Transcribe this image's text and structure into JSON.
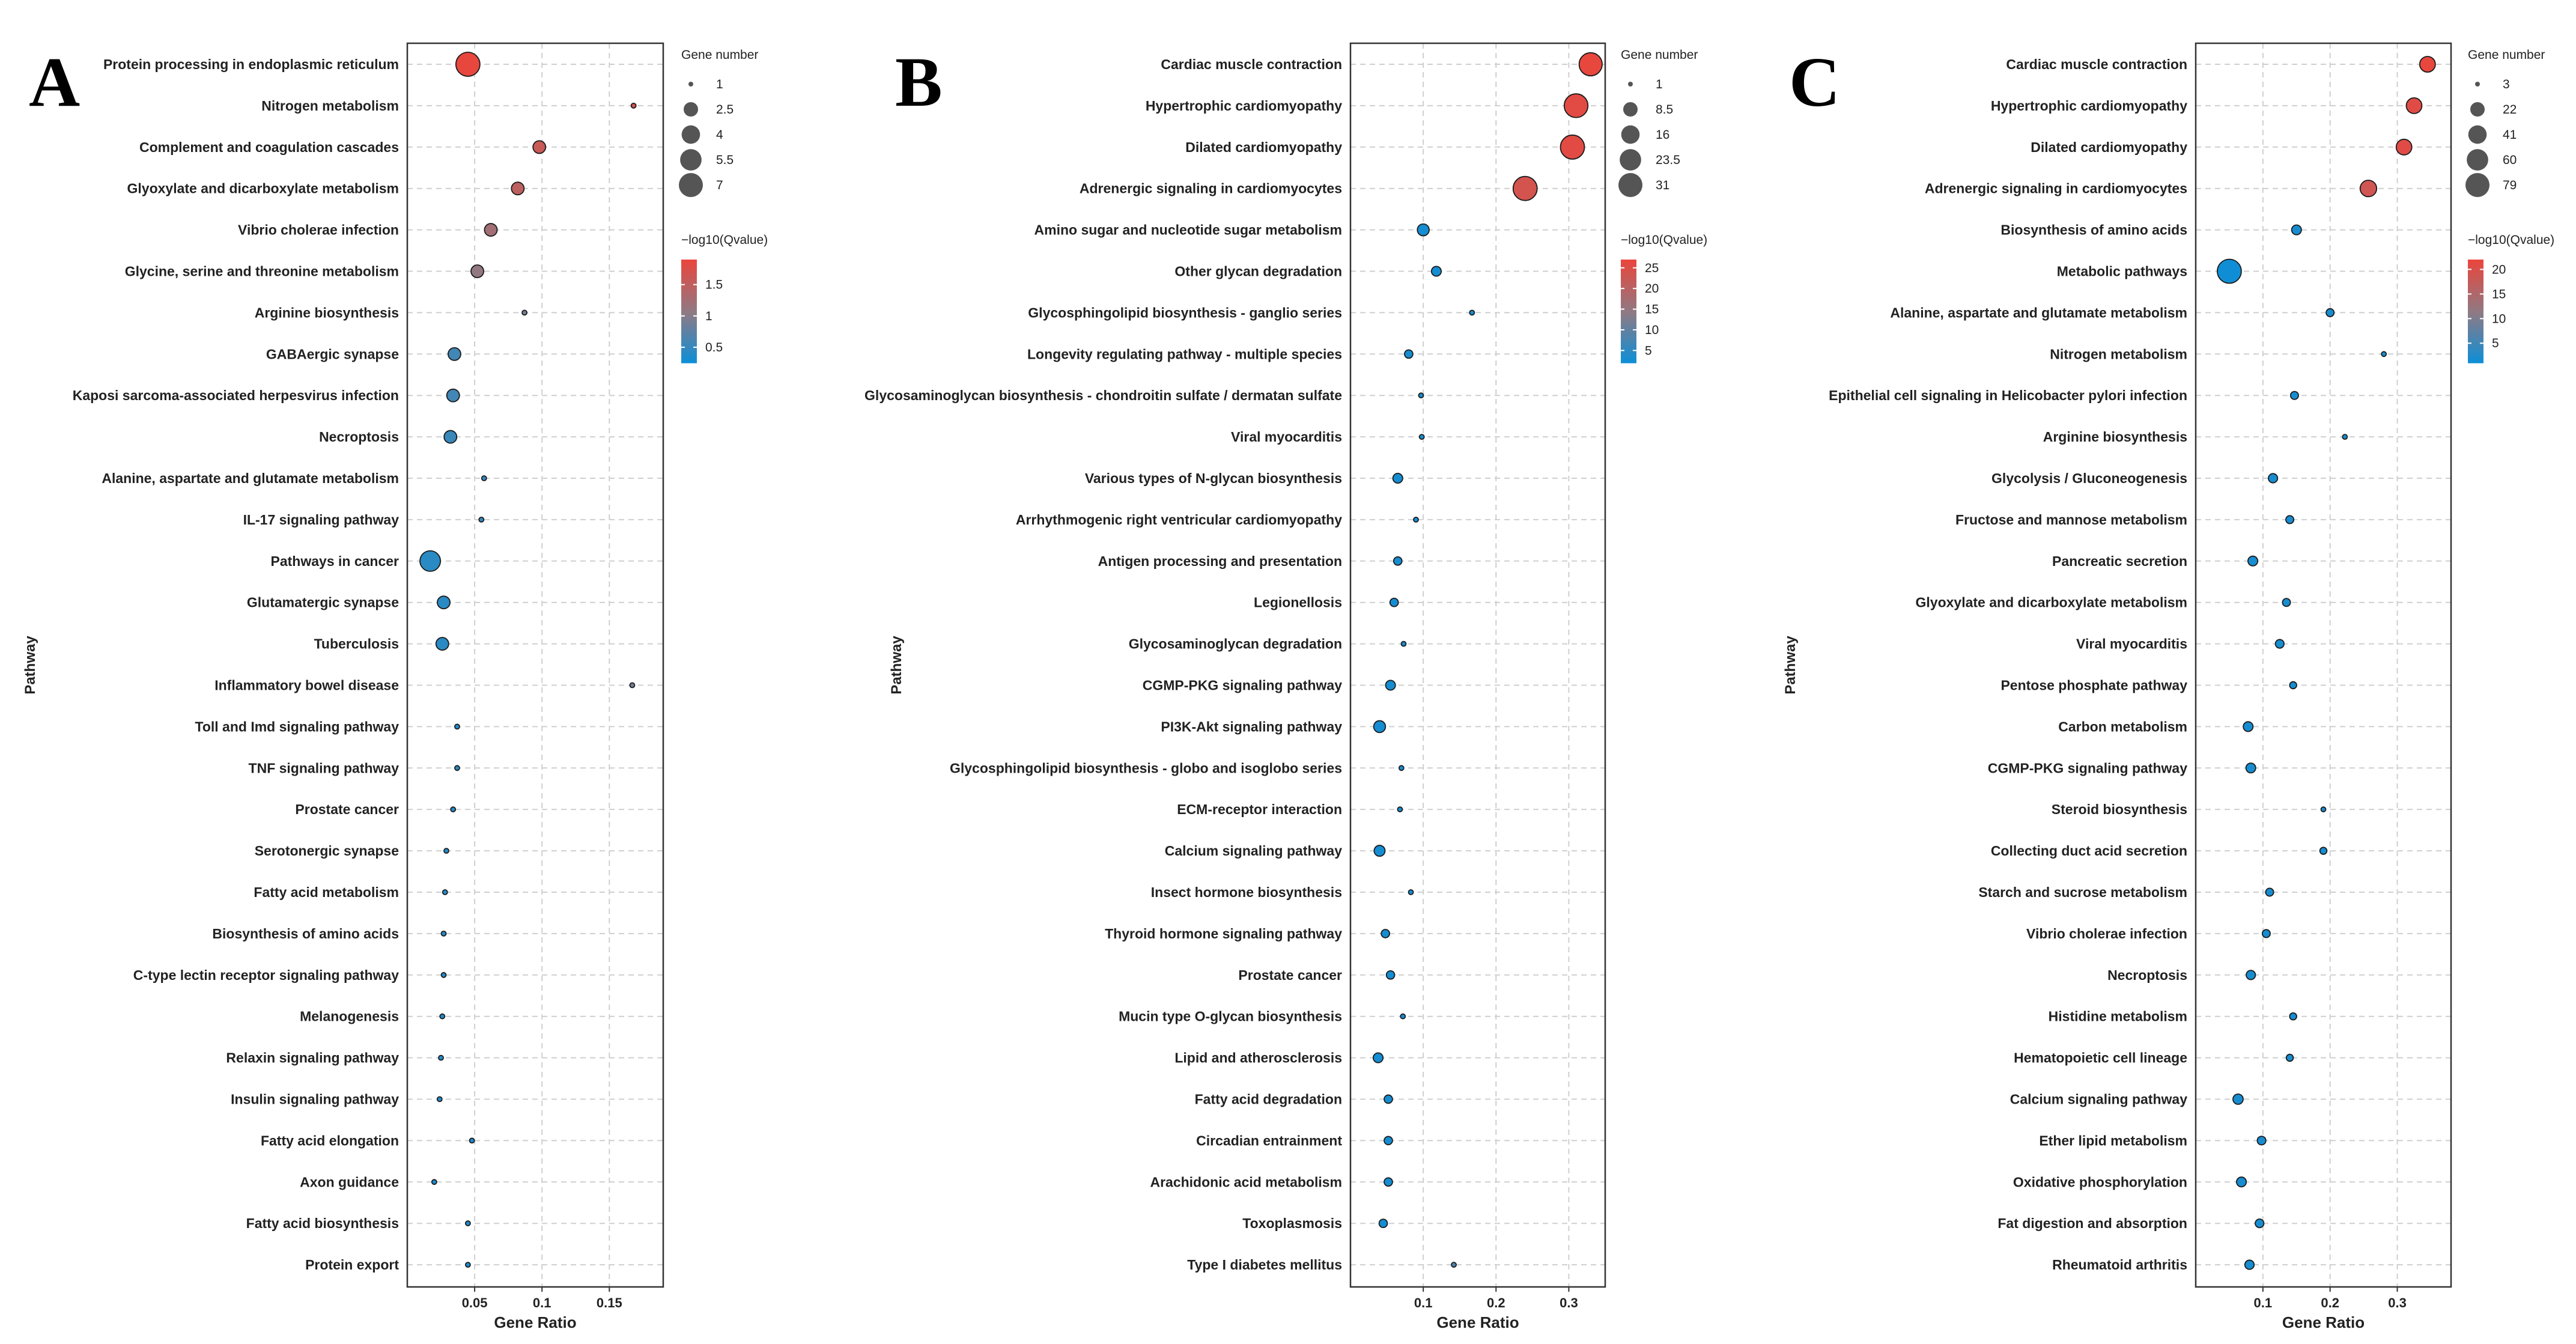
{
  "legend_titles": {
    "size": "Gene number",
    "color": "−log10(Qvalue)"
  },
  "colors": {
    "high": "#e8473e",
    "mid": "#8f7a84",
    "low": "#0a8fd9",
    "grid": "#cfcfcf",
    "frame": "#333333"
  },
  "chart_data": [
    {
      "label": "A",
      "type": "scatter",
      "xlabel": "Gene Ratio",
      "ylabel": "Pathway",
      "xlim": [
        0.0,
        0.19
      ],
      "xticks": [
        0.05,
        0.1,
        0.15
      ],
      "xtick_labels": [
        "0.05",
        "0.1",
        "0.15"
      ],
      "size_legend": [
        1,
        2.5,
        4,
        5.5,
        7
      ],
      "size_legend_labels": [
        "1",
        "2.5",
        "4",
        "5.5",
        "7"
      ],
      "size_range": [
        1,
        7
      ],
      "color_legend": [
        0.5,
        1,
        1.5
      ],
      "color_legend_labels": [
        "0.5",
        "1",
        "1.5"
      ],
      "color_range": [
        0.25,
        1.9
      ],
      "points": [
        {
          "pathway": "Protein processing in endoplasmic reticulum",
          "ratio": 0.045,
          "count": 7,
          "q": 1.9
        },
        {
          "pathway": "Nitrogen metabolism",
          "ratio": 0.168,
          "count": 1,
          "q": 1.75
        },
        {
          "pathway": "Complement and coagulation cascades",
          "ratio": 0.098,
          "count": 2,
          "q": 1.6
        },
        {
          "pathway": "Glyoxylate and dicarboxylate metabolism",
          "ratio": 0.082,
          "count": 2,
          "q": 1.5
        },
        {
          "pathway": "Vibrio cholerae infection",
          "ratio": 0.062,
          "count": 2,
          "q": 1.25
        },
        {
          "pathway": "Glycine, serine and threonine metabolism",
          "ratio": 0.052,
          "count": 2,
          "q": 1.1
        },
        {
          "pathway": "Arginine biosynthesis",
          "ratio": 0.087,
          "count": 1,
          "q": 0.9
        },
        {
          "pathway": "GABAergic synapse",
          "ratio": 0.035,
          "count": 2,
          "q": 0.6
        },
        {
          "pathway": "Kaposi sarcoma-associated herpesvirus infection",
          "ratio": 0.034,
          "count": 2,
          "q": 0.6
        },
        {
          "pathway": "Necroptosis",
          "ratio": 0.032,
          "count": 2,
          "q": 0.55
        },
        {
          "pathway": "Alanine, aspartate and glutamate metabolism",
          "ratio": 0.057,
          "count": 1,
          "q": 0.5
        },
        {
          "pathway": "IL-17 signaling pathway",
          "ratio": 0.055,
          "count": 1,
          "q": 0.5
        },
        {
          "pathway": "Pathways in cancer",
          "ratio": 0.017,
          "count": 5,
          "q": 0.45
        },
        {
          "pathway": "Glutamatergic synapse",
          "ratio": 0.027,
          "count": 2,
          "q": 0.45
        },
        {
          "pathway": "Tuberculosis",
          "ratio": 0.026,
          "count": 2,
          "q": 0.45
        },
        {
          "pathway": "Inflammatory bowel disease",
          "ratio": 0.167,
          "count": 1,
          "q": 0.9
        },
        {
          "pathway": "Toll and Imd signaling pathway",
          "ratio": 0.037,
          "count": 1,
          "q": 0.4
        },
        {
          "pathway": "TNF signaling pathway",
          "ratio": 0.037,
          "count": 1,
          "q": 0.4
        },
        {
          "pathway": "Prostate cancer",
          "ratio": 0.034,
          "count": 1,
          "q": 0.4
        },
        {
          "pathway": "Serotonergic synapse",
          "ratio": 0.029,
          "count": 1,
          "q": 0.4
        },
        {
          "pathway": "Fatty acid metabolism",
          "ratio": 0.028,
          "count": 1,
          "q": 0.4
        },
        {
          "pathway": "Biosynthesis of amino acids",
          "ratio": 0.027,
          "count": 1,
          "q": 0.4
        },
        {
          "pathway": "C-type lectin receptor signaling pathway",
          "ratio": 0.027,
          "count": 1,
          "q": 0.4
        },
        {
          "pathway": "Melanogenesis",
          "ratio": 0.026,
          "count": 1,
          "q": 0.4
        },
        {
          "pathway": "Relaxin signaling pathway",
          "ratio": 0.025,
          "count": 1,
          "q": 0.4
        },
        {
          "pathway": "Insulin signaling pathway",
          "ratio": 0.024,
          "count": 1,
          "q": 0.4
        },
        {
          "pathway": "Fatty acid elongation",
          "ratio": 0.048,
          "count": 1,
          "q": 0.35
        },
        {
          "pathway": "Axon guidance",
          "ratio": 0.02,
          "count": 1,
          "q": 0.35
        },
        {
          "pathway": "Fatty acid biosynthesis",
          "ratio": 0.045,
          "count": 1,
          "q": 0.35
        },
        {
          "pathway": "Protein export",
          "ratio": 0.045,
          "count": 1,
          "q": 0.35
        }
      ]
    },
    {
      "label": "B",
      "type": "scatter",
      "xlabel": "Gene Ratio",
      "ylabel": "Pathway",
      "xlim": [
        0.0,
        0.35
      ],
      "xticks": [
        0.1,
        0.2,
        0.3
      ],
      "xtick_labels": [
        "0.1",
        "0.2",
        "0.3"
      ],
      "size_legend": [
        1,
        8.5,
        16,
        23.5,
        31
      ],
      "size_legend_labels": [
        "1",
        "8.5",
        "16",
        "23.5",
        "31"
      ],
      "size_range": [
        1,
        31
      ],
      "color_legend": [
        5,
        10,
        15,
        20,
        25
      ],
      "color_legend_labels": [
        "5",
        "10",
        "15",
        "20",
        "25"
      ],
      "color_range": [
        2,
        27
      ],
      "points": [
        {
          "pathway": "Cardiac muscle contraction",
          "ratio": 0.33,
          "count": 28,
          "q": 27
        },
        {
          "pathway": "Hypertrophic cardiomyopathy",
          "ratio": 0.31,
          "count": 30,
          "q": 26
        },
        {
          "pathway": "Dilated cardiomyopathy",
          "ratio": 0.305,
          "count": 31,
          "q": 26
        },
        {
          "pathway": "Adrenergic signaling in cardiomyocytes",
          "ratio": 0.24,
          "count": 31,
          "q": 24
        },
        {
          "pathway": "Amino sugar and nucleotide sugar metabolism",
          "ratio": 0.1,
          "count": 5,
          "q": 3
        },
        {
          "pathway": "Other glycan degradation",
          "ratio": 0.118,
          "count": 3,
          "q": 3
        },
        {
          "pathway": "Glycosphingolipid biosynthesis - ganglio series",
          "ratio": 0.167,
          "count": 1,
          "q": 3
        },
        {
          "pathway": "Longevity regulating pathway - multiple species",
          "ratio": 0.08,
          "count": 2,
          "q": 3
        },
        {
          "pathway": "Glycosaminoglycan biosynthesis - chondroitin sulfate / dermatan sulfate",
          "ratio": 0.097,
          "count": 1,
          "q": 3
        },
        {
          "pathway": "Viral myocarditis",
          "ratio": 0.098,
          "count": 1,
          "q": 3
        },
        {
          "pathway": "Various types of N-glycan biosynthesis",
          "ratio": 0.065,
          "count": 3,
          "q": 3
        },
        {
          "pathway": "Arrhythmogenic right ventricular cardiomyopathy",
          "ratio": 0.09,
          "count": 1,
          "q": 3
        },
        {
          "pathway": "Antigen processing and presentation",
          "ratio": 0.065,
          "count": 2,
          "q": 3
        },
        {
          "pathway": "Legionellosis",
          "ratio": 0.06,
          "count": 2,
          "q": 3
        },
        {
          "pathway": "Glycosaminoglycan degradation",
          "ratio": 0.073,
          "count": 1,
          "q": 3
        },
        {
          "pathway": "CGMP-PKG signaling pathway",
          "ratio": 0.055,
          "count": 3,
          "q": 3
        },
        {
          "pathway": "PI3K-Akt signaling pathway",
          "ratio": 0.04,
          "count": 5,
          "q": 3
        },
        {
          "pathway": "Glycosphingolipid biosynthesis - globo and isoglobo series",
          "ratio": 0.07,
          "count": 1,
          "q": 3
        },
        {
          "pathway": "ECM-receptor interaction",
          "ratio": 0.068,
          "count": 1,
          "q": 3
        },
        {
          "pathway": "Calcium signaling pathway",
          "ratio": 0.04,
          "count": 4,
          "q": 3
        },
        {
          "pathway": "Insect hormone biosynthesis",
          "ratio": 0.083,
          "count": 1,
          "q": 3
        },
        {
          "pathway": "Thyroid hormone signaling pathway",
          "ratio": 0.048,
          "count": 2,
          "q": 3
        },
        {
          "pathway": "Prostate cancer",
          "ratio": 0.055,
          "count": 2,
          "q": 3
        },
        {
          "pathway": "Mucin type O-glycan biosynthesis",
          "ratio": 0.072,
          "count": 1,
          "q": 3
        },
        {
          "pathway": "Lipid and atherosclerosis",
          "ratio": 0.038,
          "count": 3,
          "q": 3
        },
        {
          "pathway": "Fatty acid degradation",
          "ratio": 0.052,
          "count": 2,
          "q": 3
        },
        {
          "pathway": "Circadian entrainment",
          "ratio": 0.052,
          "count": 2,
          "q": 3
        },
        {
          "pathway": "Arachidonic acid metabolism",
          "ratio": 0.052,
          "count": 2,
          "q": 3
        },
        {
          "pathway": "Toxoplasmosis",
          "ratio": 0.045,
          "count": 2,
          "q": 3
        },
        {
          "pathway": "Type I diabetes mellitus",
          "ratio": 0.142,
          "count": 1,
          "q": 8
        }
      ]
    },
    {
      "label": "C",
      "type": "scatter",
      "xlabel": "Gene Ratio",
      "ylabel": "Pathway",
      "xlim": [
        0.0,
        0.38
      ],
      "xticks": [
        0.1,
        0.2,
        0.3
      ],
      "xtick_labels": [
        "0.1",
        "0.2",
        "0.3"
      ],
      "size_legend": [
        3,
        22,
        41,
        60,
        79
      ],
      "size_legend_labels": [
        "3",
        "22",
        "41",
        "60",
        "79"
      ],
      "size_range": [
        3,
        79
      ],
      "color_legend": [
        5,
        10,
        15,
        20
      ],
      "color_legend_labels": [
        "5",
        "10",
        "15",
        "20"
      ],
      "color_range": [
        1,
        22
      ],
      "points": [
        {
          "pathway": "Cardiac muscle contraction",
          "ratio": 0.345,
          "count": 27,
          "q": 22
        },
        {
          "pathway": "Hypertrophic cardiomyopathy",
          "ratio": 0.325,
          "count": 27,
          "q": 21
        },
        {
          "pathway": "Dilated cardiomyopathy",
          "ratio": 0.31,
          "count": 27,
          "q": 21
        },
        {
          "pathway": "Adrenergic signaling in cardiomyocytes",
          "ratio": 0.257,
          "count": 31,
          "q": 19
        },
        {
          "pathway": "Biosynthesis of amino acids",
          "ratio": 0.15,
          "count": 8,
          "q": 2
        },
        {
          "pathway": "Metabolic pathways",
          "ratio": 0.05,
          "count": 79,
          "q": 1.5
        },
        {
          "pathway": "Alanine, aspartate and glutamate metabolism",
          "ratio": 0.2,
          "count": 5,
          "q": 2
        },
        {
          "pathway": "Nitrogen metabolism",
          "ratio": 0.28,
          "count": 3,
          "q": 2
        },
        {
          "pathway": "Epithelial cell signaling in Helicobacter pylori infection",
          "ratio": 0.147,
          "count": 5,
          "q": 2
        },
        {
          "pathway": "Arginine biosynthesis",
          "ratio": 0.222,
          "count": 3,
          "q": 2
        },
        {
          "pathway": "Glycolysis / Gluconeogenesis",
          "ratio": 0.115,
          "count": 7,
          "q": 2
        },
        {
          "pathway": "Fructose and mannose metabolism",
          "ratio": 0.14,
          "count": 5,
          "q": 2
        },
        {
          "pathway": "Pancreatic secretion",
          "ratio": 0.085,
          "count": 8,
          "q": 2
        },
        {
          "pathway": "Glyoxylate and dicarboxylate metabolism",
          "ratio": 0.135,
          "count": 5,
          "q": 2
        },
        {
          "pathway": "Viral myocarditis",
          "ratio": 0.125,
          "count": 6,
          "q": 2
        },
        {
          "pathway": "Pentose phosphate pathway",
          "ratio": 0.145,
          "count": 4,
          "q": 2
        },
        {
          "pathway": "Carbon metabolism",
          "ratio": 0.078,
          "count": 8,
          "q": 2
        },
        {
          "pathway": "CGMP-PKG signaling pathway",
          "ratio": 0.082,
          "count": 8,
          "q": 2
        },
        {
          "pathway": "Steroid biosynthesis",
          "ratio": 0.19,
          "count": 3,
          "q": 2
        },
        {
          "pathway": "Collecting duct acid secretion",
          "ratio": 0.19,
          "count": 4,
          "q": 2
        },
        {
          "pathway": "Starch and sucrose metabolism",
          "ratio": 0.11,
          "count": 5,
          "q": 2
        },
        {
          "pathway": "Vibrio cholerae infection",
          "ratio": 0.105,
          "count": 5,
          "q": 2
        },
        {
          "pathway": "Necroptosis",
          "ratio": 0.082,
          "count": 7,
          "q": 2
        },
        {
          "pathway": "Histidine metabolism",
          "ratio": 0.145,
          "count": 4,
          "q": 2
        },
        {
          "pathway": "Hematopoietic cell lineage",
          "ratio": 0.14,
          "count": 4,
          "q": 2
        },
        {
          "pathway": "Calcium signaling pathway",
          "ratio": 0.063,
          "count": 9,
          "q": 2
        },
        {
          "pathway": "Ether lipid metabolism",
          "ratio": 0.098,
          "count": 6,
          "q": 2
        },
        {
          "pathway": "Oxidative phosphorylation",
          "ratio": 0.068,
          "count": 8,
          "q": 2
        },
        {
          "pathway": "Fat digestion and absorption",
          "ratio": 0.095,
          "count": 6,
          "q": 2
        },
        {
          "pathway": "Rheumatoid arthritis",
          "ratio": 0.08,
          "count": 7,
          "q": 2
        }
      ]
    }
  ]
}
